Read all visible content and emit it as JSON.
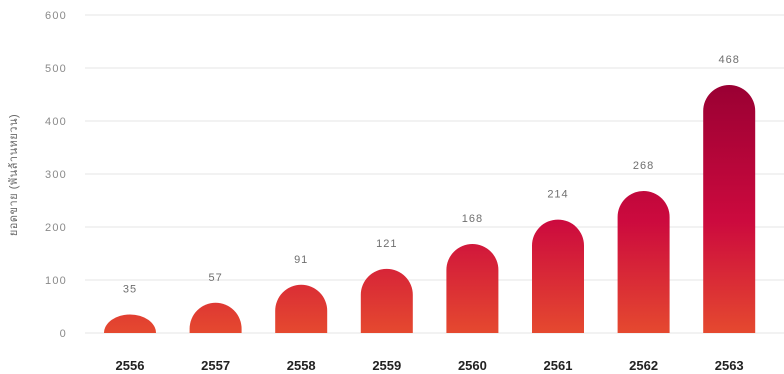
{
  "chart_data": {
    "type": "bar",
    "categories": [
      "2556",
      "2557",
      "2558",
      "2559",
      "2560",
      "2561",
      "2562",
      "2563"
    ],
    "values": [
      35,
      57,
      91,
      121,
      168,
      214,
      268,
      468
    ],
    "xlabel": "",
    "ylabel": "ยอดขาย (พันล้านหยวน)",
    "ylim": [
      0,
      600
    ],
    "yticks": [
      0,
      100,
      200,
      300,
      400,
      500,
      600
    ],
    "grid": true,
    "legend": "none",
    "data_labels": "above-bars",
    "bar_shape": "rounded-top",
    "colors": {
      "gradient_bottom": "#e5492f",
      "gradient_middle": "#cc0a3e",
      "gradient_top": "#9a0033",
      "grid": "#e6e6e6"
    }
  }
}
